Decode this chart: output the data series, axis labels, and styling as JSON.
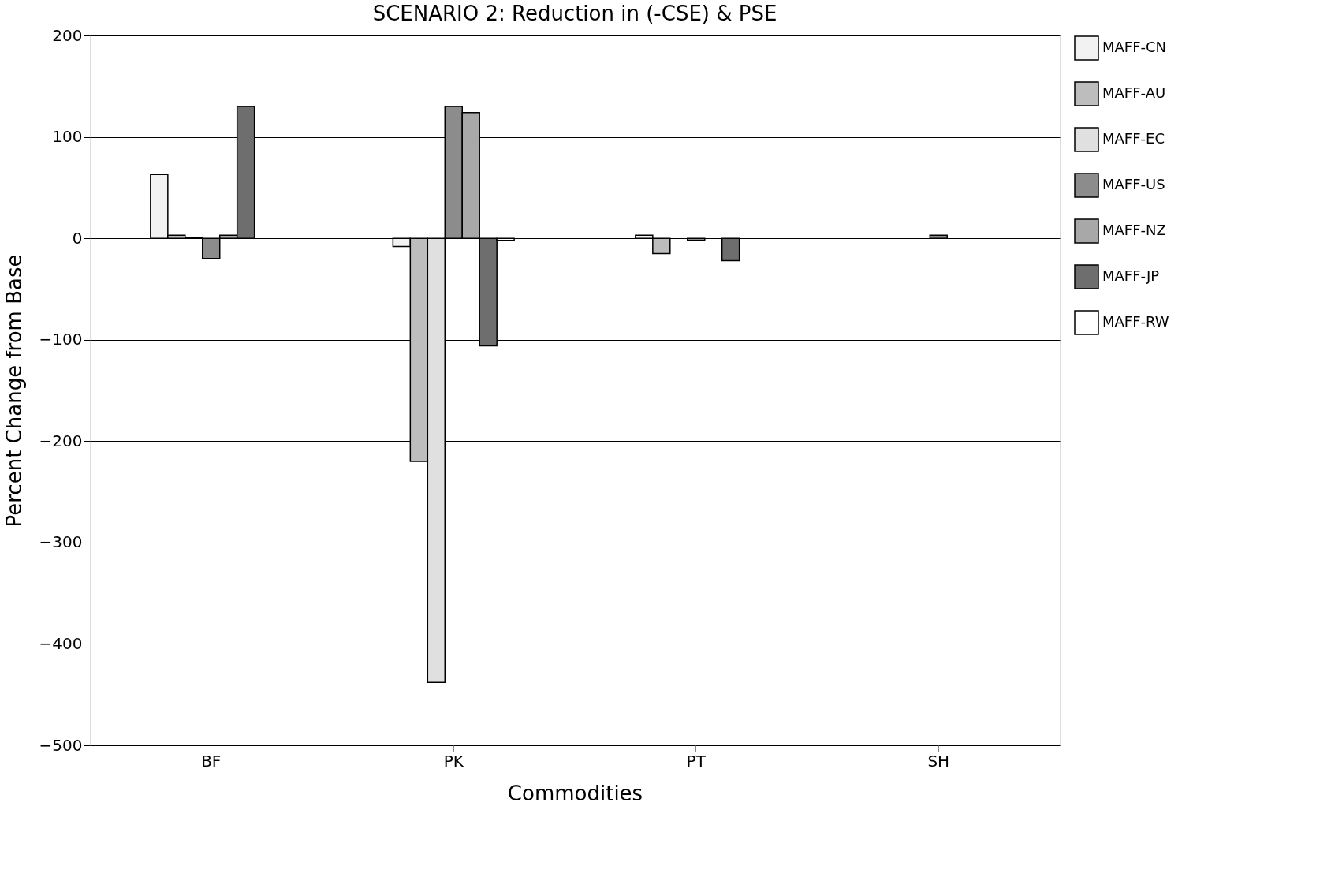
{
  "chart_data": {
    "type": "bar",
    "title": "SCENARIO 2: Reduction in (-CSE) & PSE",
    "xlabel": "Commodities",
    "ylabel": "Percent Change from Base",
    "categories": [
      "BF",
      "PK",
      "PT",
      "SH"
    ],
    "series": [
      {
        "name": "MAFF-CN",
        "color": "#f2f2f2",
        "values": [
          63,
          -8,
          3,
          null
        ]
      },
      {
        "name": "MAFF-AU",
        "color": "#bdbdbd",
        "values": [
          3,
          -220,
          -15,
          null
        ]
      },
      {
        "name": "MAFF-EC",
        "color": "#e0e0e0",
        "values": [
          1,
          -438,
          null,
          null
        ]
      },
      {
        "name": "MAFF-US",
        "color": "#8c8c8c",
        "values": [
          -20,
          130,
          -2,
          3
        ]
      },
      {
        "name": "MAFF-NZ",
        "color": "#a8a8a8",
        "values": [
          3,
          124,
          null,
          null
        ]
      },
      {
        "name": "MAFF-JP",
        "color": "#6e6e6e",
        "values": [
          130,
          -106,
          -22,
          null
        ]
      },
      {
        "name": "MAFF-RW",
        "color": "#ffffff",
        "values": [
          null,
          -2,
          null,
          null
        ]
      }
    ],
    "ylim": [
      -500,
      200
    ],
    "yticks": [
      -500,
      -400,
      -300,
      -200,
      -100,
      0,
      100,
      200
    ],
    "grid": "y",
    "legend": "right"
  }
}
